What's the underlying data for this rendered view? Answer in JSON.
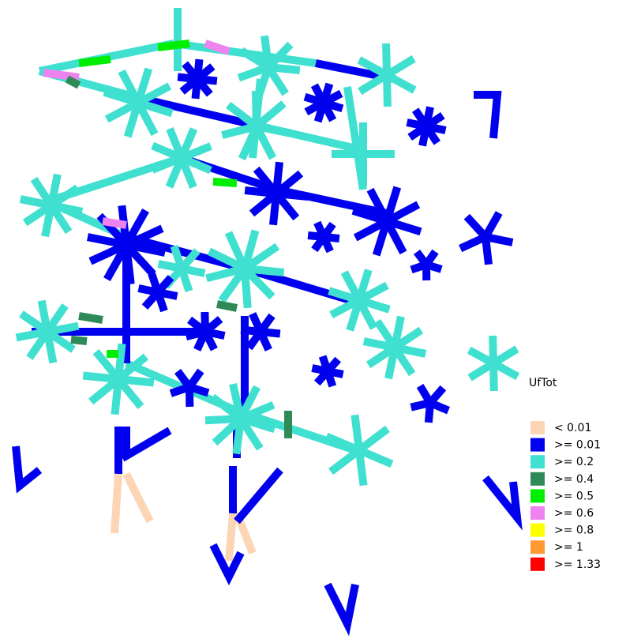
{
  "legend": {
    "title": "UfTot",
    "items": [
      {
        "label": "< 0.01",
        "color": "#fcd5b4"
      },
      {
        "label": ">= 0.01",
        "color": "#0000ee"
      },
      {
        "label": ">= 0.2",
        "color": "#40e0d0"
      },
      {
        "label": ">= 0.4",
        "color": "#2e8b57"
      },
      {
        "label": ">= 0.5",
        "color": "#00ee00"
      },
      {
        "label": ">= 0.6",
        "color": "#ee82ee"
      },
      {
        "label": ">= 0.8",
        "color": "#ffff00"
      },
      {
        "label": ">= 1",
        "color": "#ff9933"
      },
      {
        "label": ">= 1.33",
        "color": "#ff0000"
      }
    ]
  }
}
